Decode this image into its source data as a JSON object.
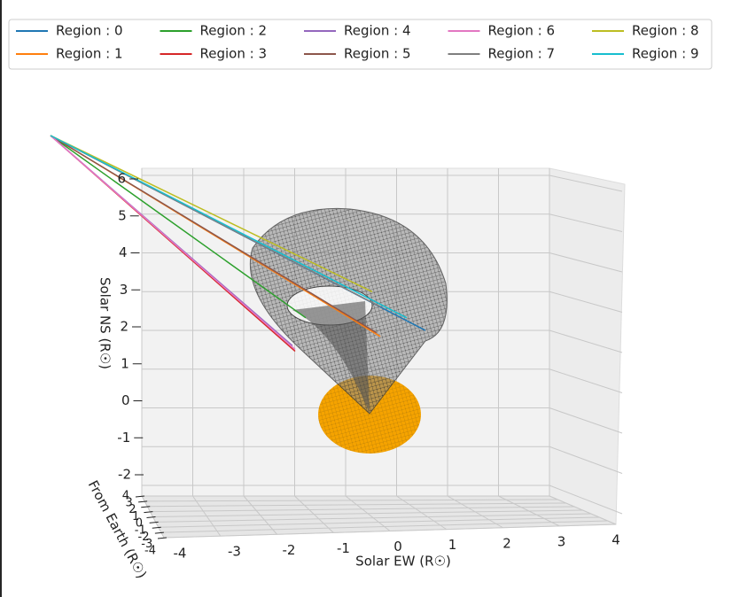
{
  "chart_data": {
    "type": "line3d",
    "xlabel": "Solar EW (R☉)",
    "ylabel": "From Earth (R☉)",
    "zlabel": "Solar NS (R☉)",
    "xlim": [
      -4,
      4
    ],
    "ylim": [
      -4,
      4
    ],
    "zlim": [
      -2,
      6
    ],
    "xticks": [
      -4,
      -3,
      -2,
      -1,
      0,
      1,
      2,
      3,
      4
    ],
    "yticks": [
      -4,
      -3,
      -2,
      -1,
      0,
      1,
      2,
      3,
      4
    ],
    "zticks": [
      -2,
      -1,
      0,
      1,
      2,
      3,
      4,
      5,
      6
    ],
    "grid": true,
    "series": [
      {
        "name": "Region : 0",
        "color": "#1f77b4",
        "x": [
          -6.0,
          1.05
        ],
        "values": [
          7.5,
          2.26
        ]
      },
      {
        "name": "Region : 1",
        "color": "#ff7f0e",
        "x": [
          -6.0,
          0.2
        ],
        "values": [
          7.5,
          2.1
        ]
      },
      {
        "name": "Region : 2",
        "color": "#2ca02c",
        "x": [
          -6.0,
          -1.2
        ],
        "values": [
          7.5,
          2.6
        ]
      },
      {
        "name": "Region : 3",
        "color": "#d62728",
        "x": [
          -6.0,
          -1.4
        ],
        "values": [
          7.5,
          1.7
        ]
      },
      {
        "name": "Region : 4",
        "color": "#9467bd",
        "x": [
          -6.0,
          -1.45
        ],
        "values": [
          7.5,
          1.85
        ]
      },
      {
        "name": "Region : 5",
        "color": "#8c564b",
        "x": [
          -6.0,
          0.13
        ],
        "values": [
          7.5,
          2.2
        ]
      },
      {
        "name": "Region : 6",
        "color": "#e377c2",
        "x": [
          -6.0,
          -1.4
        ],
        "values": [
          7.5,
          1.75
        ]
      },
      {
        "name": "Region : 7",
        "color": "#7f7f7f",
        "x": [
          -6.0,
          0.2
        ],
        "values": [
          7.5,
          2.9
        ]
      },
      {
        "name": "Region : 8",
        "color": "#bcbd22",
        "x": [
          -6.0,
          0.05
        ],
        "values": [
          7.5,
          3.3
        ]
      },
      {
        "name": "Region : 9",
        "color": "#17becf",
        "x": [
          -6.0,
          0.7
        ],
        "values": [
          7.5,
          2.6
        ]
      }
    ]
  }
}
